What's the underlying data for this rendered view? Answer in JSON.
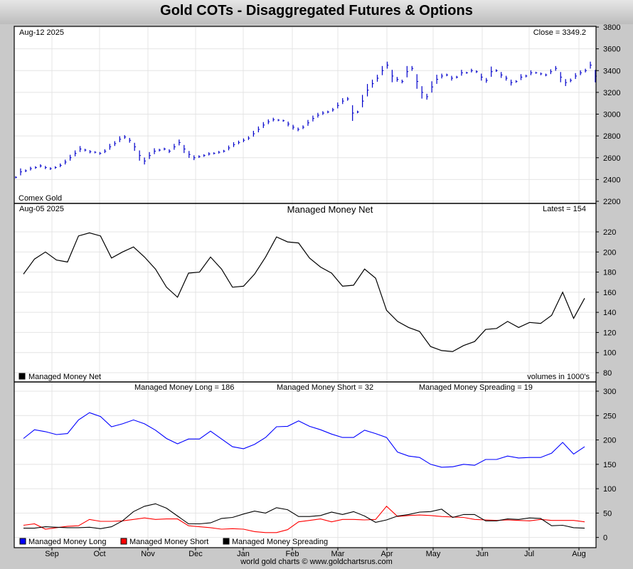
{
  "title": "Gold COTs - Disaggregated Futures & Options",
  "footer": "world gold charts © www.goldchartsrus.com",
  "price_panel": {
    "date_label": "Aug-12  2025",
    "close_label": "Close = 3349.2",
    "series_label": "Comex Gold"
  },
  "net_panel": {
    "date_label": "Aug-05  2025",
    "title": "Managed Money Net",
    "latest_label": "Latest = 154",
    "legend_label": "Managed Money Net",
    "units_label": "volumes in 1000's"
  },
  "positions_panel": {
    "long_label": "Managed Money Long = 186",
    "short_label": "Managed Money Short = 32",
    "spreading_label": "Managed Money Spreading = 19",
    "legend": [
      {
        "name": "Managed Money Long",
        "color": "#0000ff"
      },
      {
        "name": "Managed Money Short",
        "color": "#ff0000"
      },
      {
        "name": "Managed Money Spreading",
        "color": "#000000"
      }
    ]
  },
  "chart_data": [
    {
      "type": "bar",
      "name": "Comex Gold",
      "ylim": [
        2200,
        3800
      ],
      "yticks": [
        2200,
        2400,
        2600,
        2800,
        3000,
        3200,
        3400,
        3600,
        3800
      ],
      "x_labels": [
        "Sep",
        "Oct",
        "Nov",
        "Dec",
        "Jan",
        "Feb",
        "Mar",
        "Apr",
        "May",
        "Jun",
        "Jul",
        "Aug"
      ],
      "color": "#0000cc",
      "values": [
        2420,
        2470,
        2480,
        2500,
        2510,
        2525,
        2510,
        2500,
        2510,
        2530,
        2560,
        2600,
        2640,
        2680,
        2670,
        2655,
        2650,
        2640,
        2660,
        2700,
        2730,
        2770,
        2790,
        2760,
        2700,
        2620,
        2570,
        2620,
        2660,
        2670,
        2680,
        2660,
        2700,
        2740,
        2680,
        2630,
        2600,
        2610,
        2620,
        2635,
        2640,
        2650,
        2660,
        2690,
        2720,
        2740,
        2760,
        2780,
        2820,
        2860,
        2900,
        2930,
        2950,
        2945,
        2940,
        2910,
        2880,
        2860,
        2880,
        2920,
        2960,
        2990,
        3010,
        3020,
        3040,
        3080,
        3120,
        3140,
        3010,
        3020,
        3120,
        3220,
        3280,
        3330,
        3400,
        3450,
        3350,
        3320,
        3300,
        3390,
        3420,
        3300,
        3200,
        3160,
        3250,
        3320,
        3350,
        3360,
        3330,
        3340,
        3380,
        3380,
        3400,
        3390,
        3340,
        3310,
        3390,
        3400,
        3360,
        3330,
        3290,
        3300,
        3340,
        3350,
        3380,
        3380,
        3370,
        3360,
        3390,
        3420,
        3340,
        3290,
        3310,
        3350,
        3380,
        3400,
        3450,
        3349.2
      ]
    },
    {
      "type": "line",
      "name": "Managed Money Net",
      "ylim": [
        80,
        220
      ],
      "yticks": [
        80,
        100,
        120,
        140,
        160,
        180,
        200,
        220
      ],
      "values": [
        178,
        193,
        200,
        192,
        190,
        216,
        219,
        216,
        194,
        200,
        205,
        195,
        183,
        165,
        155,
        179,
        180,
        195,
        183,
        165,
        166,
        178,
        195,
        215,
        210,
        209,
        194,
        185,
        179,
        166,
        167,
        183,
        174,
        142,
        131,
        125,
        121,
        106,
        102,
        101,
        107,
        111,
        123,
        124,
        131,
        125,
        130,
        129,
        137,
        160,
        134,
        154
      ]
    },
    {
      "type": "line",
      "name": "Managed Money Positions",
      "ylim": [
        -10,
        300
      ],
      "yticks": [
        0,
        50,
        100,
        150,
        200,
        250,
        300
      ],
      "series": [
        {
          "name": "Managed Money Long",
          "color": "#0000ff",
          "values": [
            203,
            221,
            217,
            211,
            213,
            241,
            256,
            248,
            227,
            233,
            241,
            233,
            220,
            203,
            192,
            202,
            202,
            218,
            202,
            186,
            182,
            191,
            205,
            227,
            228,
            239,
            228,
            221,
            212,
            205,
            205,
            220,
            213,
            205,
            175,
            167,
            164,
            150,
            144,
            145,
            150,
            148,
            160,
            160,
            167,
            163,
            164,
            164,
            173,
            195,
            171,
            186
          ]
        },
        {
          "name": "Managed Money Short",
          "color": "#ff0000",
          "values": [
            25,
            28,
            17,
            20,
            23,
            24,
            37,
            33,
            33,
            34,
            37,
            40,
            37,
            38,
            38,
            24,
            22,
            20,
            17,
            18,
            17,
            12,
            10,
            10,
            16,
            32,
            35,
            38,
            32,
            37,
            37,
            36,
            37,
            64,
            43,
            45,
            46,
            45,
            43,
            42,
            41,
            37,
            36,
            35,
            36,
            35,
            34,
            37,
            35,
            35,
            35,
            32
          ]
        },
        {
          "name": "Managed Money Spreading",
          "color": "#000000",
          "values": [
            19,
            19,
            22,
            21,
            20,
            20,
            21,
            18,
            22,
            34,
            53,
            64,
            69,
            60,
            44,
            28,
            28,
            30,
            39,
            41,
            48,
            54,
            50,
            61,
            57,
            43,
            43,
            45,
            52,
            47,
            53,
            44,
            31,
            36,
            44,
            47,
            52,
            53,
            58,
            41,
            47,
            47,
            34,
            34,
            38,
            37,
            40,
            39,
            24,
            25,
            20,
            19
          ]
        }
      ]
    }
  ]
}
